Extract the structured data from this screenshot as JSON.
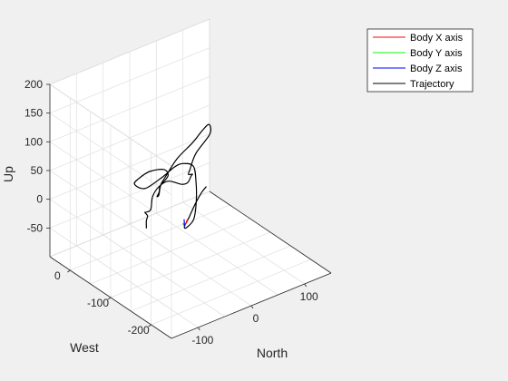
{
  "chart_data": {
    "type": "line",
    "projection": "3d",
    "title": "",
    "xlabel": "North",
    "ylabel": "West",
    "zlabel": "Up",
    "xlim": [
      -150,
      150
    ],
    "ylim": [
      -250,
      50
    ],
    "zlim": [
      -100,
      200
    ],
    "xticks": [
      -100,
      0,
      100
    ],
    "yticks": [
      -200,
      -100,
      0
    ],
    "zticks": [
      -50,
      0,
      50,
      100,
      150,
      200
    ],
    "grid": true,
    "legend_position": "top-right",
    "legend": [
      {
        "label": "Body X axis",
        "color": "#ff0000"
      },
      {
        "label": "Body Y axis",
        "color": "#00ff00"
      },
      {
        "label": "Body Z axis",
        "color": "#0000ff"
      },
      {
        "label": "Trajectory",
        "color": "#000000"
      }
    ],
    "series": [
      {
        "name": "Trajectory",
        "color": "#000000",
        "points": [
          [
            -60,
            -218,
            115
          ],
          [
            -70,
            -220,
            110
          ],
          [
            -80,
            -218,
            94
          ],
          [
            -90,
            -215,
            72
          ],
          [
            -95,
            -210,
            55
          ],
          [
            -80,
            -195,
            40
          ],
          [
            -55,
            -180,
            38
          ],
          [
            -35,
            -160,
            50
          ],
          [
            -20,
            -140,
            70
          ],
          [
            -10,
            -120,
            85
          ],
          [
            -15,
            -100,
            82
          ],
          [
            -20,
            -85,
            70
          ],
          [
            -30,
            -70,
            50
          ],
          [
            -55,
            -60,
            35
          ],
          [
            -90,
            -80,
            65
          ],
          [
            -120,
            -130,
            110
          ],
          [
            -130,
            -170,
            145
          ],
          [
            -115,
            -185,
            150
          ],
          [
            -80,
            -150,
            110
          ],
          [
            -60,
            -110,
            70
          ],
          [
            -50,
            -90,
            50
          ],
          [
            -40,
            -75,
            30
          ],
          [
            -40,
            -70,
            20
          ],
          [
            -25,
            -55,
            10
          ],
          [
            -10,
            -40,
            15
          ],
          [
            10,
            -30,
            22
          ],
          [
            40,
            -15,
            30
          ],
          [
            80,
            0,
            35
          ],
          [
            110,
            15,
            38
          ],
          [
            130,
            25,
            36
          ],
          [
            120,
            10,
            30
          ],
          [
            90,
            5,
            10
          ],
          [
            75,
            0,
            -10
          ],
          [
            80,
            10,
            -25
          ],
          [
            95,
            20,
            -35
          ],
          [
            100,
            30,
            -45
          ],
          [
            90,
            25,
            -50
          ],
          [
            75,
            20,
            -45
          ],
          [
            50,
            20,
            -30
          ],
          [
            25,
            10,
            -25
          ],
          [
            5,
            0,
            -30
          ],
          [
            -10,
            -15,
            -40
          ],
          [
            -30,
            -30,
            -30
          ],
          [
            -40,
            -40,
            -22
          ],
          [
            -35,
            -40,
            -30
          ],
          [
            -45,
            -50,
            -30
          ],
          [
            -60,
            -70,
            -28
          ]
        ]
      }
    ],
    "body_axes_origin": [
      -95,
      -210,
      55
    ],
    "body_axes_vectors": [
      {
        "name": "Body X axis",
        "color": "#ff0000",
        "vector": [
          8,
          3,
          8
        ]
      },
      {
        "name": "Body Y axis",
        "color": "#00ff00",
        "vector": [
          6,
          12,
          -2
        ]
      },
      {
        "name": "Body Z axis",
        "color": "#0000ff",
        "vector": [
          -3,
          -3,
          15
        ]
      }
    ]
  }
}
